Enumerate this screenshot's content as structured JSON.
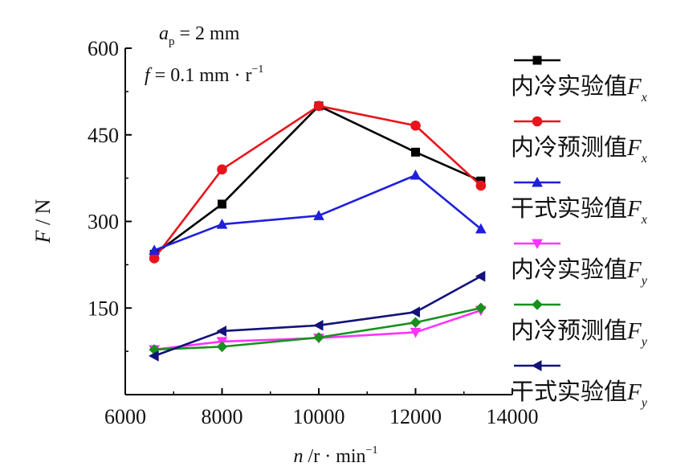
{
  "annotation": {
    "line1": {
      "symbol": "a",
      "sub": "p",
      "text": " = 2 mm"
    },
    "line2": {
      "symbol": "f",
      "text": " = 0.1 mm · r",
      "sup": "−1"
    }
  },
  "chart_data": {
    "type": "line",
    "xlabel": {
      "symbol": "n",
      "text": " /r · min",
      "sup": "−1"
    },
    "ylabel": {
      "symbol": "F",
      "text": " / N"
    },
    "xlim": [
      6000,
      14000
    ],
    "ylim": [
      0,
      600
    ],
    "xticks": [
      6000,
      8000,
      10000,
      12000,
      14000
    ],
    "yticks": [
      150,
      300,
      450,
      600
    ],
    "x": [
      6600,
      8000,
      10000,
      12000,
      13350
    ],
    "grid": false,
    "legend_position": "right",
    "series": [
      {
        "name": "内冷实验值",
        "var": "F",
        "sub": "x",
        "color": "#000000",
        "marker": "square",
        "values": [
          243,
          330,
          500,
          420,
          370
        ]
      },
      {
        "name": "内冷预测值",
        "var": "F",
        "sub": "x",
        "color": "#e8141c",
        "marker": "circle",
        "values": [
          236,
          390,
          500,
          466,
          362
        ]
      },
      {
        "name": "干式实验值",
        "var": "F",
        "sub": "x",
        "color": "#1f1fdc",
        "marker": "triangle-up",
        "values": [
          250,
          295,
          310,
          380,
          287
        ]
      },
      {
        "name": "内冷实验值",
        "var": "F",
        "sub": "y",
        "color": "#ff33ff",
        "marker": "triangle-down",
        "values": [
          78,
          92,
          98,
          108,
          146
        ]
      },
      {
        "name": "内冷预测值",
        "var": "F",
        "sub": "y",
        "color": "#17911c",
        "marker": "diamond",
        "values": [
          78,
          83,
          99,
          125,
          150
        ]
      },
      {
        "name": "干式实验值",
        "var": "F",
        "sub": "y",
        "color": "#12127a",
        "marker": "triangle-left",
        "values": [
          67,
          110,
          120,
          143,
          205
        ]
      }
    ]
  }
}
